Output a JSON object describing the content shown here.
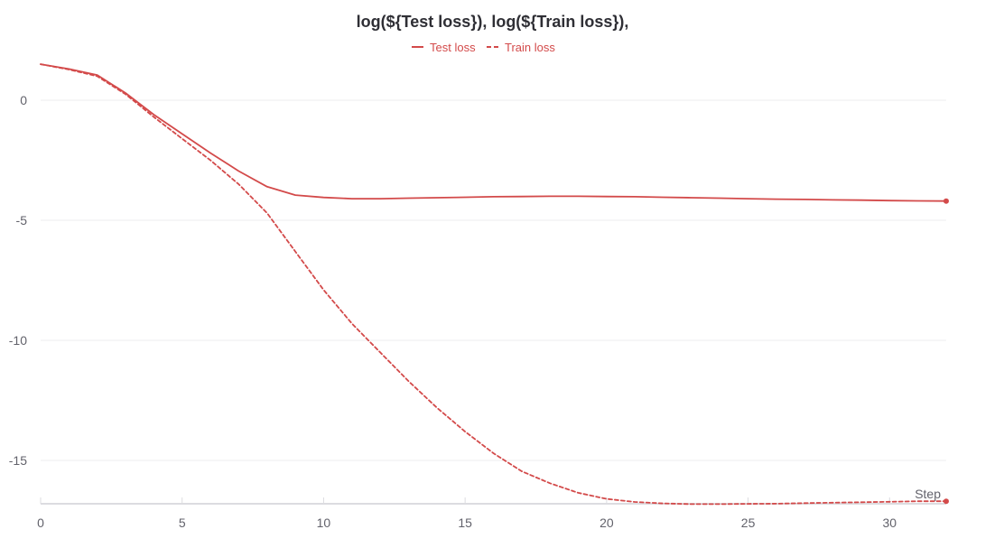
{
  "chart_data": {
    "type": "line",
    "title": "log(${Test loss}), log(${Train loss}),",
    "xlabel": "Step",
    "ylabel": "",
    "xlim": [
      0,
      32
    ],
    "ylim": [
      -16.8,
      1.7
    ],
    "x_ticks": [
      0,
      5,
      10,
      15,
      20,
      25,
      30
    ],
    "y_ticks": [
      0,
      -5,
      -10,
      -15
    ],
    "grid": true,
    "legend_position": "top-center",
    "series": [
      {
        "name": "Test loss",
        "style": "solid",
        "color": "#d34a4a",
        "x": [
          0,
          1,
          2,
          3,
          4,
          5,
          6,
          7,
          8,
          9,
          10,
          11,
          12,
          13,
          14,
          15,
          16,
          17,
          18,
          19,
          20,
          21,
          22,
          23,
          24,
          25,
          26,
          27,
          28,
          29,
          30,
          31,
          32
        ],
        "y": [
          1.5,
          1.3,
          1.05,
          0.3,
          -0.6,
          -1.4,
          -2.2,
          -2.95,
          -3.6,
          -3.95,
          -4.05,
          -4.1,
          -4.1,
          -4.08,
          -4.06,
          -4.04,
          -4.02,
          -4.01,
          -4.0,
          -4.0,
          -4.01,
          -4.02,
          -4.04,
          -4.06,
          -4.08,
          -4.1,
          -4.12,
          -4.13,
          -4.15,
          -4.16,
          -4.18,
          -4.19,
          -4.2
        ]
      },
      {
        "name": "Train loss",
        "style": "dashed",
        "color": "#d34a4a",
        "x": [
          0,
          1,
          2,
          3,
          4,
          5,
          6,
          7,
          8,
          9,
          10,
          11,
          12,
          13,
          14,
          15,
          16,
          17,
          18,
          19,
          20,
          21,
          22,
          23,
          24,
          25,
          26,
          27,
          28,
          29,
          30,
          31,
          32
        ],
        "y": [
          1.5,
          1.28,
          1.0,
          0.25,
          -0.7,
          -1.6,
          -2.5,
          -3.5,
          -4.7,
          -6.3,
          -7.9,
          -9.3,
          -10.5,
          -11.7,
          -12.8,
          -13.8,
          -14.7,
          -15.45,
          -15.95,
          -16.35,
          -16.6,
          -16.73,
          -16.79,
          -16.82,
          -16.82,
          -16.81,
          -16.8,
          -16.78,
          -16.76,
          -16.74,
          -16.72,
          -16.7,
          -16.7
        ]
      }
    ]
  }
}
